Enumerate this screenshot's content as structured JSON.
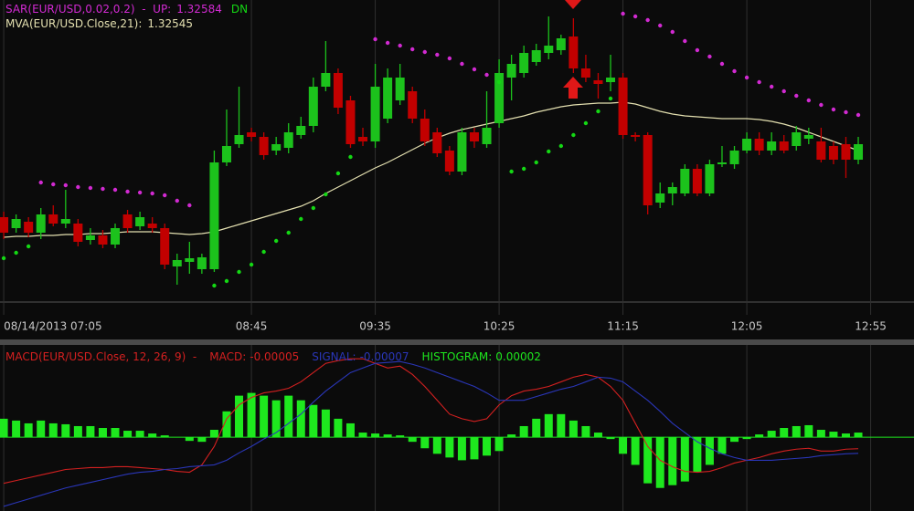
{
  "chart_data": [
    {
      "type": "candlestick",
      "sar": {
        "name": "SAR(EUR/USD,0.02,0.2)  -  UP:",
        "suffix": "DN",
        "color_above": "#d22ad2",
        "color_below": "#14d814",
        "values": [
          1.32427,
          1.32433,
          1.3244,
          1.3251,
          1.32508,
          1.32507,
          1.32505,
          1.32504,
          1.32503,
          1.32502,
          1.325,
          1.32499,
          1.32498,
          1.32496,
          1.3249,
          1.32485,
          null,
          1.32397,
          1.32402,
          1.32412,
          1.3242,
          1.32434,
          1.32446,
          1.32455,
          1.3247,
          1.32482,
          1.32497,
          1.3252,
          1.32538,
          null,
          1.32667,
          1.32663,
          1.3266,
          1.32656,
          1.32653,
          1.3265,
          1.32646,
          1.3264,
          1.32634,
          1.32628,
          1.3262,
          1.32522,
          1.32525,
          1.32532,
          1.32544,
          1.3255,
          1.32562,
          1.32575,
          1.32588,
          1.32602,
          1.32695,
          1.32692,
          1.32688,
          1.32682,
          1.32675,
          1.32665,
          1.32655,
          1.32648,
          1.3264,
          1.32632,
          1.32625,
          1.3262,
          1.32615,
          1.3261,
          1.32605,
          1.326,
          1.32595,
          1.3259,
          1.32587,
          1.32584
        ]
      },
      "mva": {
        "name": "MVA(EUR/USD.Close,21):",
        "color": "#e4e0b0",
        "values": [
          1.3245,
          1.32451,
          1.32451,
          1.32452,
          1.32452,
          1.32453,
          1.32453,
          1.32454,
          1.32454,
          1.32455,
          1.32456,
          1.32456,
          1.32456,
          1.32455,
          1.32454,
          1.32453,
          1.32454,
          1.32456,
          1.3246,
          1.32464,
          1.32468,
          1.32472,
          1.32476,
          1.3248,
          1.32484,
          1.3249,
          1.32498,
          1.32505,
          1.32512,
          1.32519,
          1.32526,
          1.32532,
          1.32539,
          1.32546,
          1.32553,
          1.32559,
          1.32564,
          1.32568,
          1.32571,
          1.32574,
          1.32577,
          1.3258,
          1.32583,
          1.32587,
          1.3259,
          1.32593,
          1.32595,
          1.32596,
          1.32597,
          1.32597,
          1.32598,
          1.32596,
          1.32592,
          1.32588,
          1.32585,
          1.32583,
          1.32582,
          1.32581,
          1.3258,
          1.3258,
          1.3258,
          1.32579,
          1.32577,
          1.32574,
          1.3257,
          1.32565,
          1.3256,
          1.32555,
          1.3255,
          1.32545
        ]
      },
      "open": [
        1.32472,
        1.3246,
        1.32467,
        1.32455,
        1.32475,
        1.32465,
        1.32465,
        1.32447,
        1.32452,
        1.32442,
        1.32475,
        1.32462,
        1.32465,
        1.3246,
        1.32418,
        1.32423,
        1.32415,
        1.32415,
        1.32532,
        1.32552,
        1.32565,
        1.3256,
        1.32545,
        1.32548,
        1.32562,
        1.32572,
        1.32615,
        1.3263,
        1.326,
        1.3256,
        1.32555,
        1.3258,
        1.326,
        1.3261,
        1.3258,
        1.32565,
        1.32545,
        1.32522,
        1.32565,
        1.32552,
        1.32575,
        1.32625,
        1.3263,
        1.32642,
        1.32652,
        1.32655,
        1.3267,
        1.32635,
        1.32622,
        1.3262,
        1.32625,
        1.32562,
        1.32562,
        1.32488,
        1.32498,
        1.32498,
        1.32525,
        1.32498,
        1.3253,
        1.3253,
        1.32545,
        1.32558,
        1.32545,
        1.32555,
        1.3255,
        1.32558,
        1.32555,
        1.3255,
        1.32552,
        1.32535
      ],
      "high": [
        1.32478,
        1.32475,
        1.32472,
        1.32482,
        1.32485,
        1.32502,
        1.3247,
        1.3246,
        1.32458,
        1.32465,
        1.3248,
        1.32478,
        1.32472,
        1.32465,
        1.32432,
        1.32445,
        1.32432,
        1.32545,
        1.3259,
        1.32615,
        1.3257,
        1.32565,
        1.3256,
        1.32575,
        1.32582,
        1.32625,
        1.32665,
        1.32635,
        1.32605,
        1.3257,
        1.3264,
        1.32635,
        1.3264,
        1.32615,
        1.3259,
        1.3257,
        1.3255,
        1.3257,
        1.3257,
        1.3261,
        1.32645,
        1.3265,
        1.3266,
        1.32662,
        1.32692,
        1.32672,
        1.3269,
        1.3265,
        1.3263,
        1.3265,
        1.3263,
        1.32565,
        1.32565,
        1.3251,
        1.3251,
        1.3253,
        1.3253,
        1.32535,
        1.3255,
        1.3255,
        1.32565,
        1.32565,
        1.32565,
        1.32562,
        1.32572,
        1.3257,
        1.3257,
        1.32555,
        1.3256,
        1.3256
      ],
      "low": [
        1.32448,
        1.32455,
        1.3245,
        1.32448,
        1.32462,
        1.3246,
        1.3244,
        1.32442,
        1.32438,
        1.32438,
        1.32455,
        1.32458,
        1.32455,
        1.32415,
        1.32398,
        1.3241,
        1.3241,
        1.32412,
        1.32528,
        1.32548,
        1.32555,
        1.32535,
        1.3254,
        1.32542,
        1.32558,
        1.32565,
        1.3261,
        1.32585,
        1.32548,
        1.3255,
        1.32548,
        1.32575,
        1.32595,
        1.32575,
        1.3255,
        1.32538,
        1.32518,
        1.32518,
        1.32548,
        1.32548,
        1.3257,
        1.326,
        1.32625,
        1.32638,
        1.32645,
        1.3265,
        1.3263,
        1.3262,
        1.32602,
        1.3261,
        1.32558,
        1.32555,
        1.32475,
        1.32482,
        1.32485,
        1.32495,
        1.32495,
        1.32495,
        1.32527,
        1.32525,
        1.32542,
        1.3254,
        1.3254,
        1.32542,
        1.32545,
        1.32552,
        1.32532,
        1.3253,
        1.32515,
        1.3253
      ],
      "close": [
        1.32455,
        1.3247,
        1.32455,
        1.32475,
        1.32465,
        1.3247,
        1.32445,
        1.32452,
        1.32442,
        1.3246,
        1.3246,
        1.32472,
        1.3246,
        1.3242,
        1.32425,
        1.32427,
        1.32428,
        1.32532,
        1.3255,
        1.32562,
        1.3256,
        1.3254,
        1.32552,
        1.32565,
        1.32572,
        1.32615,
        1.3263,
        1.32592,
        1.32552,
        1.32555,
        1.32615,
        1.32625,
        1.32625,
        1.3258,
        1.32555,
        1.32542,
        1.32522,
        1.32565,
        1.32555,
        1.3257,
        1.3263,
        1.3264,
        1.32652,
        1.32655,
        1.3266,
        1.32668,
        1.32635,
        1.32625,
        1.32618,
        1.32625,
        1.32562,
        1.3256,
        1.32485,
        1.32498,
        1.32505,
        1.32525,
        1.32498,
        1.3253,
        1.32532,
        1.32545,
        1.32558,
        1.32545,
        1.32555,
        1.32545,
        1.32565,
        1.32562,
        1.32535,
        1.32535,
        1.32535,
        1.32552
      ],
      "up_color": "#1cc21c",
      "down_color": "#c20000",
      "ylim": [
        1.3238,
        1.3271
      ],
      "xlim": [
        -0.3,
        73.5
      ],
      "xticks": [
        {
          "value": 0,
          "label": "08/14/2013 07:05"
        },
        {
          "value": 20,
          "label": "08:45"
        },
        {
          "value": 30,
          "label": "09:35"
        },
        {
          "value": 40,
          "label": "10:25"
        },
        {
          "value": 50,
          "label": "11:15"
        },
        {
          "value": 60,
          "label": "12:05"
        },
        {
          "value": 70,
          "label": "12:55"
        }
      ],
      "grid": true
    },
    {
      "type": "macd",
      "title": "MACD(EUR/USD.Close, 12, 26, 9)  -",
      "title_color": "#d42020",
      "ylim": [
        -0.00032,
        0.0004
      ],
      "xlim": [
        -0.3,
        73.5
      ],
      "series": [
        {
          "name": "MACD:",
          "color": "#d42020",
          "style": "line",
          "values": [
            -0.0002,
            -0.000188,
            -0.000176,
            -0.000164,
            -0.000152,
            -0.00014,
            -0.000136,
            -0.000132,
            -0.000132,
            -0.000128,
            -0.000128,
            -0.000132,
            -0.000136,
            -0.00014,
            -0.000148,
            -0.000152,
            -0.00012,
            -4e-05,
            8e-05,
            0.00014,
            0.000172,
            0.000192,
            0.0002,
            0.000212,
            0.00024,
            0.00028,
            0.00032,
            0.000332,
            0.00034,
            0.00034,
            0.00032,
            0.0003,
            0.000308,
            0.000272,
            0.00022,
            0.00016,
            0.0001,
            8e-05,
            6.8e-05,
            8e-05,
            0.00014,
            0.00018,
            0.0002,
            0.000208,
            0.00022,
            0.00024,
            0.00026,
            0.000272,
            0.00026,
            0.00022,
            0.00016,
            6e-05,
            -4e-05,
            -0.0001,
            -0.000128,
            -0.000148,
            -0.000152,
            -0.000148,
            -0.000132,
            -0.000112,
            -0.0001,
            -8.8e-05,
            -7.2e-05,
            -6e-05,
            -5.2e-05,
            -4.8e-05,
            -6e-05,
            -6e-05,
            -5.2e-05,
            -5e-05
          ]
        },
        {
          "name": "SIGNAL:",
          "color": "#2a36b8",
          "style": "line",
          "values": [
            -0.0003,
            -0.000284,
            -0.000268,
            -0.000252,
            -0.000236,
            -0.00022,
            -0.000208,
            -0.000196,
            -0.000184,
            -0.000172,
            -0.00016,
            -0.000152,
            -0.000148,
            -0.00014,
            -0.000136,
            -0.000128,
            -0.000124,
            -0.00012,
            -0.0001,
            -6.8e-05,
            -4e-05,
            -8e-06,
            2e-05,
            6e-05,
            0.0001,
            0.000152,
            0.0002,
            0.00024,
            0.00028,
            0.0003,
            0.00032,
            0.000324,
            0.000328,
            0.000316,
            0.0003,
            0.00028,
            0.00026,
            0.00024,
            0.00022,
            0.000192,
            0.00016,
            0.00016,
            0.00016,
            0.000176,
            0.000192,
            0.000208,
            0.00022,
            0.00024,
            0.00026,
            0.000256,
            0.00024,
            0.0002,
            0.00016,
            0.000112,
            6e-05,
            2e-05,
            -2e-05,
            -4.8e-05,
            -7.2e-05,
            -8.8e-05,
            -0.0001,
            -0.0001,
            -0.0001,
            -9.6e-05,
            -9.2e-05,
            -8.8e-05,
            -8e-05,
            -7.6e-05,
            -7.2e-05,
            -7e-05
          ]
        },
        {
          "name": "HISTOGRAM:",
          "color": "#1ee81e",
          "style": "bar",
          "values": [
            8e-05,
            7.2e-05,
            6e-05,
            7.2e-05,
            6e-05,
            5.6e-05,
            4.8e-05,
            4.8e-05,
            4e-05,
            4e-05,
            2.8e-05,
            2.8e-05,
            1.6e-05,
            8e-06,
            0,
            -1.6e-05,
            -2e-05,
            3.2e-05,
            0.000112,
            0.00018,
            0.000192,
            0.00018,
            0.00016,
            0.00018,
            0.00016,
            0.00014,
            0.00012,
            8e-05,
            6e-05,
            2e-05,
            1.6e-05,
            1.2e-05,
            8e-06,
            -2e-05,
            -4.8e-05,
            -7.2e-05,
            -8.8e-05,
            -0.0001,
            -9.6e-05,
            -8e-05,
            -6e-05,
            1.2e-05,
            4.8e-05,
            8e-05,
            0.0001,
            0.0001,
            7.2e-05,
            4.8e-05,
            2e-05,
            -8e-06,
            -7.2e-05,
            -0.00012,
            -0.0002,
            -0.00022,
            -0.000208,
            -0.000192,
            -0.000152,
            -0.00012,
            -7.2e-05,
            -2e-05,
            -8e-06,
            1.2e-05,
            2.8e-05,
            4e-05,
            4.8e-05,
            5.2e-05,
            3.2e-05,
            2.4e-05,
            1.6e-05,
            2e-05
          ]
        }
      ]
    }
  ]
}
